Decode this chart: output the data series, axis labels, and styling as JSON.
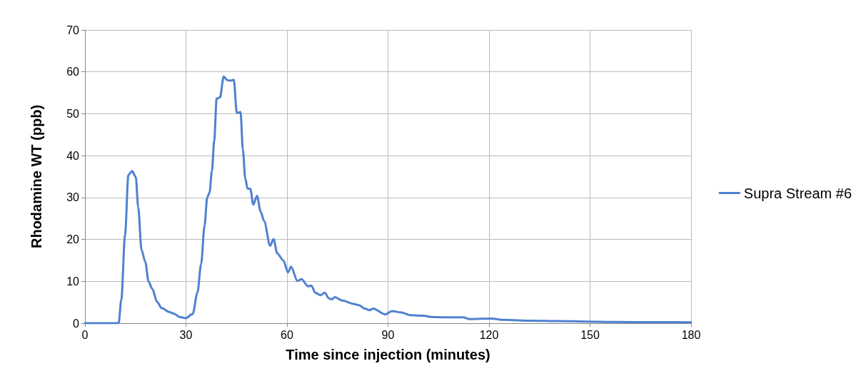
{
  "chart_data": {
    "type": "line",
    "xlabel": "Time since injection (minutes)",
    "ylabel": "Rhodamine WT (ppb)",
    "xlim": [
      0,
      180
    ],
    "xticks": [
      0,
      30,
      60,
      90,
      120,
      150,
      180
    ],
    "ylim": [
      0,
      70
    ],
    "yticks": [
      0,
      10,
      20,
      30,
      40,
      50,
      60,
      70
    ],
    "grid": true,
    "legend": "right",
    "marker": "none",
    "line_style": "solid",
    "series": [
      {
        "name": "Supra Stream #6",
        "color": "#4f81d0",
        "x": [
          0,
          5,
          10.0,
          10.8,
          11.9,
          12.9,
          14.0,
          15.1,
          15.8,
          16.8,
          17.9,
          18.9,
          20.0,
          21.4,
          22.8,
          25.0,
          26.4,
          28.1,
          29.9,
          32.0,
          33.4,
          34.5,
          35.5,
          36.3,
          37.0,
          37.7,
          38.4,
          39.1,
          40.1,
          41.2,
          42.3,
          43.3,
          44.2,
          45.1,
          46.2,
          46.9,
          47.6,
          48.3,
          49.1,
          50.0,
          51.1,
          52.2,
          53.2,
          55.0,
          56.0,
          57.1,
          58.9,
          60.3,
          61.2,
          63.1,
          64.3,
          66.3,
          67.2,
          68.4,
          70.0,
          71.2,
          72.5,
          73.3,
          74.2,
          76.5,
          79.8,
          81.4,
          83.1,
          84.5,
          85.6,
          89.2,
          91.2,
          93.7,
          96.9,
          100.6,
          102.6,
          107.5,
          112.4,
          114.1,
          120.6,
          124.6,
          132.8,
          140.9,
          149.1,
          157.3,
          169.5,
          180
        ],
        "values": [
          0,
          0,
          0,
          5.6,
          21,
          35.4,
          36.3,
          34.9,
          27.8,
          17.5,
          14.7,
          9.9,
          8.2,
          5.1,
          3.6,
          2.7,
          2.3,
          1.5,
          1.2,
          2.2,
          7.3,
          14.1,
          23.2,
          30.0,
          31.2,
          36.3,
          43.7,
          53.6,
          53.9,
          58.9,
          58.0,
          57.9,
          58.1,
          50.2,
          50.4,
          41.4,
          34.6,
          32.1,
          32.1,
          28.3,
          30.4,
          26.6,
          24.4,
          18.5,
          20.1,
          16.7,
          15.0,
          12.1,
          13.5,
          10.1,
          10.5,
          8.8,
          9.0,
          7.3,
          6.7,
          7.3,
          5.9,
          5.7,
          6.2,
          5.4,
          4.6,
          4.3,
          3.5,
          3.1,
          3.5,
          2.1,
          2.9,
          2.6,
          1.9,
          1.8,
          1.5,
          1.4,
          1.4,
          1.0,
          1.1,
          0.8,
          0.6,
          0.5,
          0.4,
          0.3,
          0.25,
          0.2
        ]
      }
    ]
  }
}
